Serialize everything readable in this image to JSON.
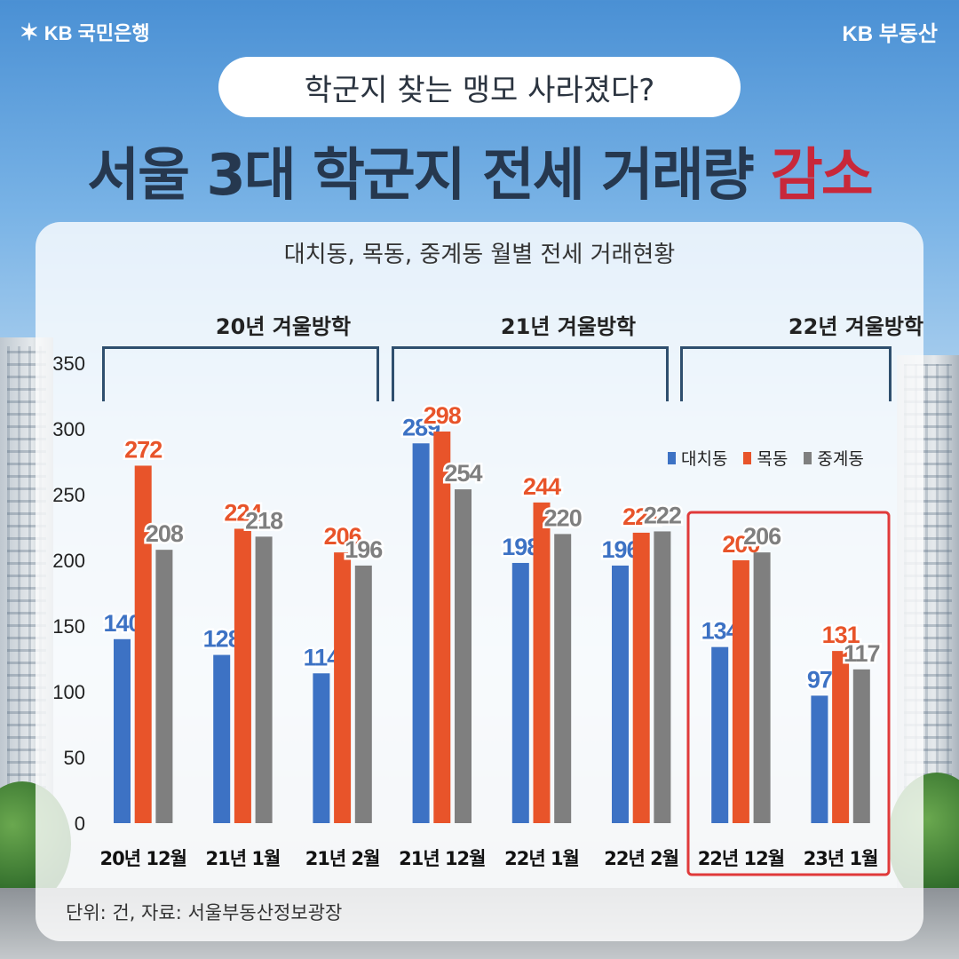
{
  "brand": {
    "left": "KB 국민은행",
    "right": "KB 부동산"
  },
  "header": {
    "question": "학군지 찾는 맹모 사라졌다?",
    "headline_main": "서울 3대 학군지 전세 거래량 ",
    "headline_accent": "감소"
  },
  "colors": {
    "blue": "#3d72c4",
    "orange": "#e8542a",
    "gray": "#7f7f7f",
    "highlight": "#e03a3a",
    "headline": "#26384f",
    "accent": "#c8283a"
  },
  "groups": [
    {
      "label": "20년 겨울방학"
    },
    {
      "label": "21년 겨울방학"
    },
    {
      "label": "22년 겨울방학"
    }
  ],
  "source_note": "단위: 건, 자료: 서울부동산정보광장",
  "chart_data": {
    "type": "bar",
    "title": "대치동, 목동, 중계동 월별 전세 거래현황",
    "xlabel": "",
    "ylabel": "",
    "ylim": [
      0,
      350
    ],
    "yticks": [
      0,
      50,
      100,
      150,
      200,
      250,
      300,
      350
    ],
    "categories": [
      "20년 12월",
      "21년 1월",
      "21년 2월",
      "21년 12월",
      "22년 1월",
      "22년 2월",
      "22년 12월",
      "23년 1월"
    ],
    "series": [
      {
        "name": "대치동",
        "color": "#3d72c4",
        "values": [
          140,
          128,
          114,
          289,
          198,
          196,
          134,
          97
        ]
      },
      {
        "name": "목동",
        "color": "#e8542a",
        "values": [
          272,
          224,
          206,
          298,
          244,
          221,
          200,
          131
        ]
      },
      {
        "name": "중계동",
        "color": "#7f7f7f",
        "values": [
          208,
          218,
          196,
          254,
          220,
          222,
          206,
          117
        ]
      }
    ],
    "grid": false,
    "legend": "top-right"
  }
}
